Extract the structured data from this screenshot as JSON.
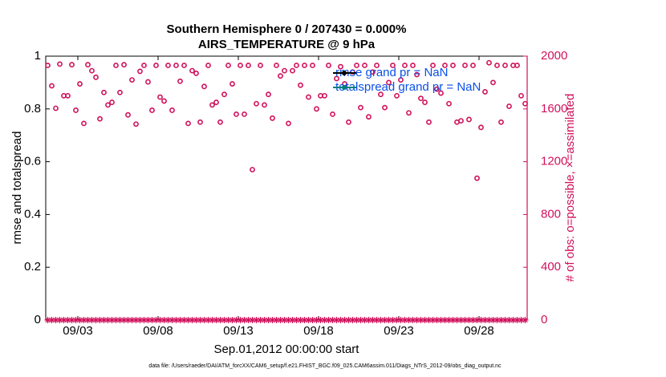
{
  "chart_data": {
    "type": "scatter",
    "title": "Southern Hemisphere 0 / 207430 = 0.000%",
    "subtitle": "AIRS_TEMPERATURE @ 9 hPa",
    "xlabel": "Sep.01,2012 00:00:00 start",
    "ylabel": "rmse and totalspread",
    "y2label": "# of obs: o=possible, ×=assimilated",
    "footnote": "data file: /Users/raeder/DAI/ATM_forcXX/CAM6_setup/f.e21.FHIST_BGC.f09_025.CAM6assim.011/Diags_NTrS_2012-09/obs_diag_output.nc",
    "xlim": [
      0,
      30
    ],
    "xticks": [
      {
        "value": 2,
        "label": "09/03"
      },
      {
        "value": 7,
        "label": "09/08"
      },
      {
        "value": 12,
        "label": "09/13"
      },
      {
        "value": 17,
        "label": "09/18"
      },
      {
        "value": 22,
        "label": "09/23"
      },
      {
        "value": 27,
        "label": "09/28"
      }
    ],
    "ylim": [
      0,
      1
    ],
    "yticks": [
      0,
      0.2,
      0.4,
      0.6,
      0.8,
      1
    ],
    "y2lim": [
      0,
      2000
    ],
    "y2ticks": [
      0,
      400,
      800,
      1200,
      1600,
      2000
    ],
    "y2color": "#d0105a",
    "legend": [
      {
        "name": "rmse grand pr = NaN",
        "color": "#000000"
      },
      {
        "name": "totalspread grand pr = NaN",
        "color": "#00807a"
      }
    ],
    "legend_text_color": "#0a50e6",
    "x": [
      0.125,
      0.375,
      0.625,
      0.875,
      1.125,
      1.375,
      1.625,
      1.875,
      2.125,
      2.375,
      2.625,
      2.875,
      3.125,
      3.375,
      3.625,
      3.875,
      4.125,
      4.375,
      4.625,
      4.875,
      5.125,
      5.375,
      5.625,
      5.875,
      6.125,
      6.375,
      6.625,
      6.875,
      7.125,
      7.375,
      7.625,
      7.875,
      8.125,
      8.375,
      8.625,
      8.875,
      9.125,
      9.375,
      9.625,
      9.875,
      10.125,
      10.375,
      10.625,
      10.875,
      11.125,
      11.375,
      11.625,
      11.875,
      12.125,
      12.375,
      12.625,
      12.875,
      13.125,
      13.375,
      13.625,
      13.875,
      14.125,
      14.375,
      14.625,
      14.875,
      15.125,
      15.375,
      15.625,
      15.875,
      16.125,
      16.375,
      16.625,
      16.875,
      17.125,
      17.375,
      17.625,
      17.875,
      18.125,
      18.375,
      18.625,
      18.875,
      19.125,
      19.375,
      19.625,
      19.875,
      20.125,
      20.375,
      20.625,
      20.875,
      21.125,
      21.375,
      21.625,
      21.875,
      22.125,
      22.375,
      22.625,
      22.875,
      23.125,
      23.375,
      23.625,
      23.875,
      24.125,
      24.375,
      24.625,
      24.875,
      25.125,
      25.375,
      25.625,
      25.875,
      26.125,
      26.375,
      26.625,
      26.875,
      27.125,
      27.375,
      27.625,
      27.875,
      28.125,
      28.375,
      28.625,
      28.875,
      29.125,
      29.375,
      29.625,
      29.875
    ],
    "series": [
      {
        "marker": "circle",
        "axis": "y2",
        "color": "#d0105a",
        "values": [
          1930,
          1775,
          1605,
          1940,
          1700,
          1700,
          1935,
          1590,
          1790,
          1490,
          1935,
          1890,
          1840,
          1525,
          1725,
          1630,
          1650,
          1930,
          1725,
          1935,
          1555,
          1820,
          1485,
          1885,
          1930,
          1805,
          1590,
          1930,
          1690,
          1660,
          1930,
          1590,
          1930,
          1810,
          1930,
          1490,
          1890,
          1870,
          1500,
          1770,
          1930,
          1630,
          1650,
          1500,
          1710,
          1930,
          1790,
          1560,
          1930,
          1560,
          1930,
          1140,
          1640,
          1930,
          1630,
          1710,
          1530,
          1930,
          1850,
          1890,
          1490,
          1890,
          1930,
          1780,
          1930,
          1690,
          1930,
          1600,
          1700,
          1700,
          1930,
          1560,
          1830,
          1920,
          1790,
          1500,
          1880,
          1930,
          1610,
          1930,
          1540,
          1880,
          1930,
          1710,
          1610,
          1800,
          1930,
          1700,
          1820,
          1930,
          1570,
          1930,
          1860,
          1680,
          1650,
          1500,
          1930,
          1750,
          1720,
          1930,
          1640,
          1930,
          1500,
          1510,
          1930,
          1520,
          1930,
          1075,
          1460,
          1730,
          1950,
          1800,
          1930,
          1500,
          1930,
          1620,
          1930,
          1930,
          1700,
          1640
        ]
      },
      {
        "marker": "asterisk",
        "axis": "y2",
        "color": "#d0105a",
        "values": [
          0,
          0,
          0,
          0,
          0,
          0,
          0,
          0,
          0,
          0,
          0,
          0,
          0,
          0,
          0,
          0,
          0,
          0,
          0,
          0,
          0,
          0,
          0,
          0,
          0,
          0,
          0,
          0,
          0,
          0,
          0,
          0,
          0,
          0,
          0,
          0,
          0,
          0,
          0,
          0,
          0,
          0,
          0,
          0,
          0,
          0,
          0,
          0,
          0,
          0,
          0,
          0,
          0,
          0,
          0,
          0,
          0,
          0,
          0,
          0,
          0,
          0,
          0,
          0,
          0,
          0,
          0,
          0,
          0,
          0,
          0,
          0,
          0,
          0,
          0,
          0,
          0,
          0,
          0,
          0,
          0,
          0,
          0,
          0,
          0,
          0,
          0,
          0,
          0,
          0,
          0,
          0,
          0,
          0,
          0,
          0,
          0,
          0,
          0,
          0,
          0,
          0,
          0,
          0,
          0,
          0,
          0,
          0,
          0,
          0,
          0,
          0,
          0,
          0,
          0,
          0,
          0,
          0,
          0,
          0
        ]
      }
    ]
  }
}
